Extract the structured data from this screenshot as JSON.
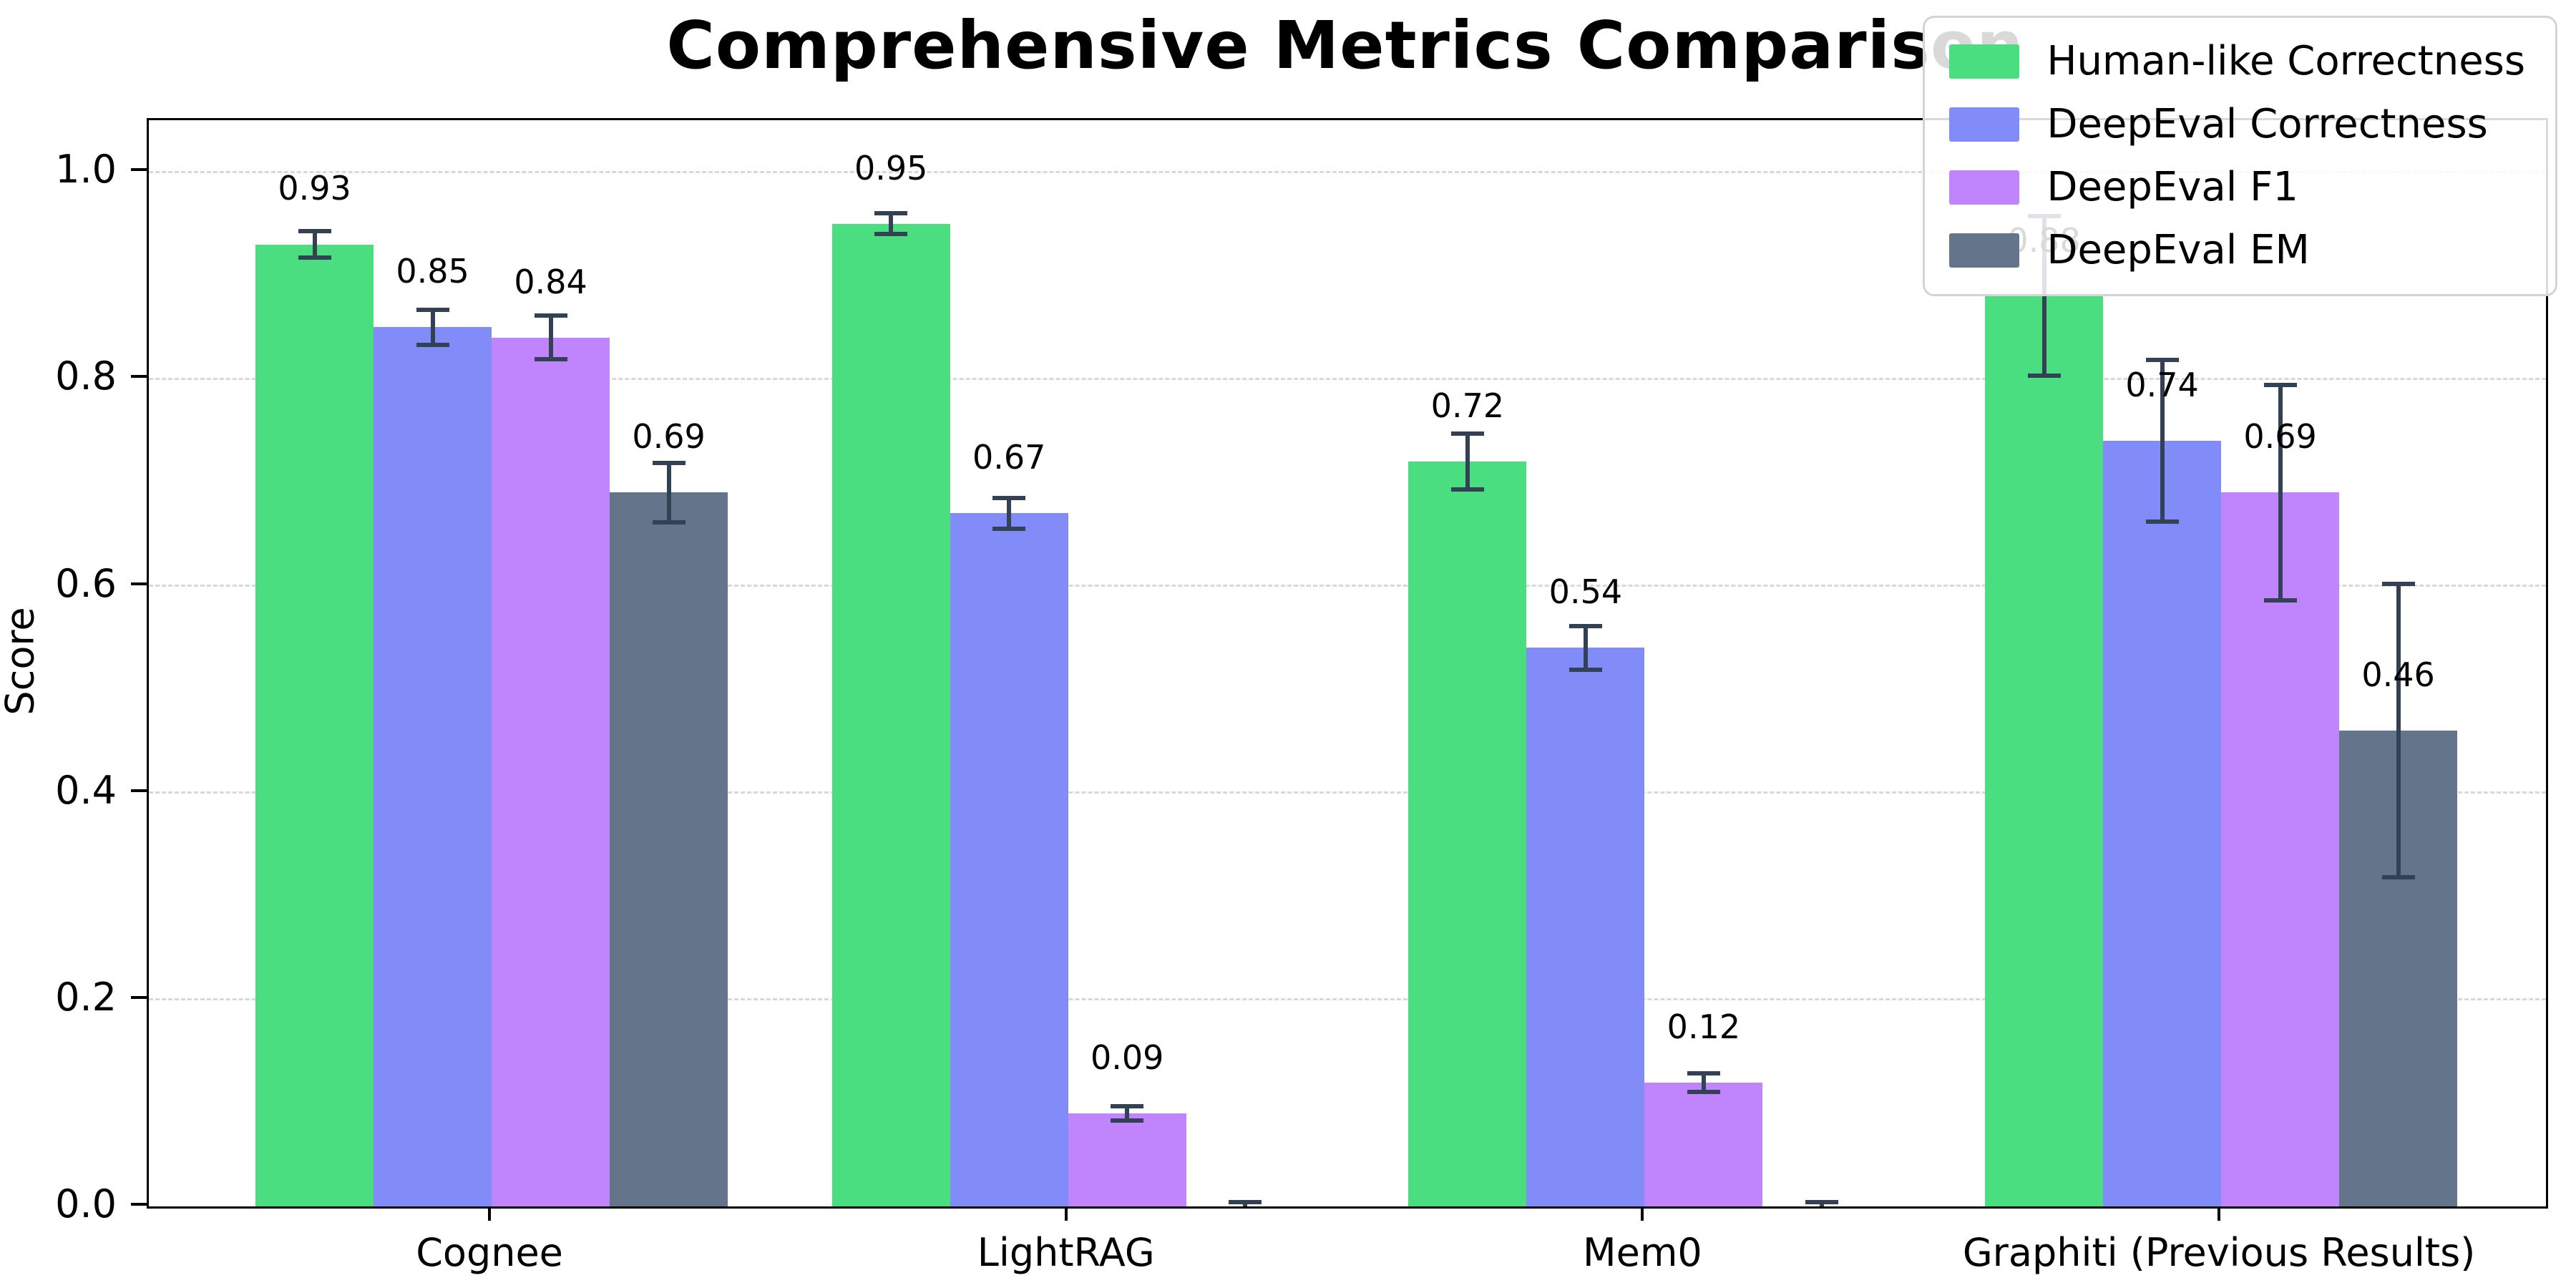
{
  "chart_data": {
    "type": "bar",
    "title": "Comprehensive Metrics Comparison",
    "ylabel": "Score",
    "xlabel": "",
    "categories": [
      "Cognee",
      "LightRAG",
      "Mem0",
      "Graphiti (Previous Results)"
    ],
    "series": [
      {
        "name": "Human-like Correctness",
        "color": "#4ade80",
        "values": [
          0.93,
          0.95,
          0.72,
          0.88
        ],
        "errors": [
          0.013,
          0.01,
          0.027,
          0.077
        ],
        "labels": [
          "0.93",
          "0.95",
          "0.72",
          "0.88"
        ]
      },
      {
        "name": "DeepEval Correctness",
        "color": "#818cf8",
        "values": [
          0.85,
          0.67,
          0.54,
          0.74
        ],
        "errors": [
          0.017,
          0.015,
          0.021,
          0.078
        ],
        "labels": [
          "0.85",
          "0.67",
          "0.54",
          "0.74"
        ]
      },
      {
        "name": "DeepEval F1",
        "color": "#c084fc",
        "values": [
          0.84,
          0.09,
          0.12,
          0.69
        ],
        "errors": [
          0.021,
          0.007,
          0.009,
          0.104
        ],
        "labels": [
          "0.84",
          "0.09",
          "0.12",
          "0.69"
        ]
      },
      {
        "name": "DeepEval EM",
        "color": "#64748b",
        "values": [
          0.69,
          0.0,
          0.0,
          0.46
        ],
        "errors": [
          0.029,
          0.004,
          0.004,
          0.142
        ],
        "labels": [
          "0.69",
          "",
          "",
          "0.46"
        ]
      }
    ],
    "yticks": [
      "0.0",
      "0.2",
      "0.4",
      "0.6",
      "0.8",
      "1.0"
    ],
    "ylim": [
      0,
      1.05
    ],
    "grid": "horizontal-dashed",
    "legend_position": "upper-right",
    "error_bar_color": "#334155",
    "axis_color": "#000000",
    "grid_color": "#d9d9d9",
    "background_color": "#ffffff"
  }
}
